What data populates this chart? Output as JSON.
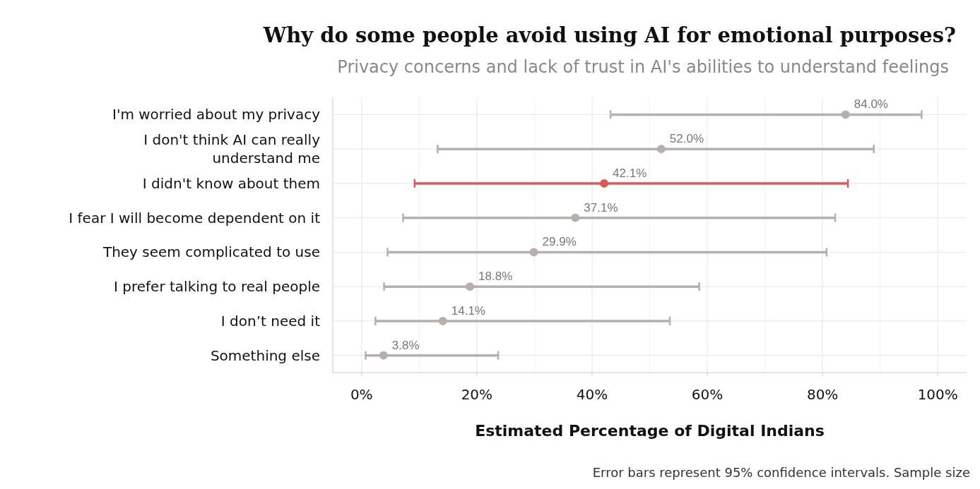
{
  "chart_data": {
    "type": "scatter",
    "orientation": "horizontal",
    "title": "Why do some people avoid using AI for emotional purposes?",
    "subtitle": "Privacy concerns and lack of trust in AI's abilities to understand feelings",
    "xlabel": "Estimated Percentage of Digital Indians",
    "categories": [
      "I'm worried about my privacy",
      "I don't think AI can really understand me",
      "I didn't know about them",
      "I fear I will become dependent on it",
      "They seem complicated to use",
      "I prefer talking to real people",
      "I don’t need it",
      "Something else"
    ],
    "values": [
      84.0,
      52.0,
      42.1,
      37.1,
      29.9,
      18.8,
      14.1,
      3.8
    ],
    "errors": [
      [
        43.2,
        97.2
      ],
      [
        13.2,
        88.9
      ],
      [
        9.2,
        84.4
      ],
      [
        7.2,
        82.2
      ],
      [
        4.5,
        80.7
      ],
      [
        3.9,
        58.6
      ],
      [
        2.4,
        53.5
      ],
      [
        0.7,
        23.7
      ]
    ],
    "value_labels": [
      "84.0%",
      "52.0%",
      "42.1%",
      "37.1%",
      "29.9%",
      "18.8%",
      "14.1%",
      "3.8%"
    ],
    "colors": [
      "#b6afab",
      "#b6afab",
      "#e05557",
      "#b6afab",
      "#b6afab",
      "#b6afab",
      "#b6afab",
      "#b6afab"
    ],
    "xlim": [
      -5,
      105
    ],
    "xticks": [
      {
        "value": 0,
        "label": "0%"
      },
      {
        "value": 20,
        "label": "20%"
      },
      {
        "value": 40,
        "label": "40%"
      },
      {
        "value": 60,
        "label": "60%"
      },
      {
        "value": 80,
        "label": "80%"
      },
      {
        "value": 100,
        "label": "100%"
      }
    ],
    "grid": true,
    "marker": "circle",
    "annotations": [
      "Error bars represent 95% confidence intervals. Sample size"
    ]
  }
}
